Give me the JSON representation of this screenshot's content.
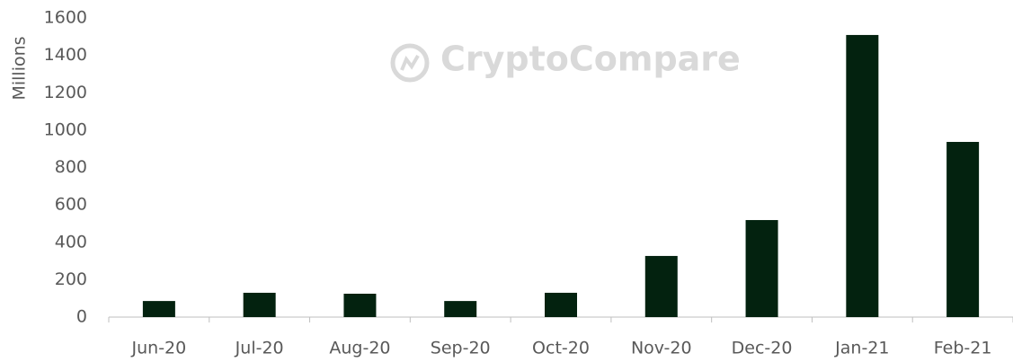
{
  "chart_data": {
    "type": "bar",
    "y_label": "Millions",
    "watermark": "CryptoCompare",
    "categories": [
      "Jun-20",
      "Jul-20",
      "Aug-20",
      "Sep-20",
      "Oct-20",
      "Nov-20",
      "Dec-20",
      "Jan-21",
      "Feb-21"
    ],
    "values": [
      86,
      130,
      125,
      86,
      130,
      327,
      519,
      1509,
      937
    ],
    "color": "#03220f",
    "ylim": [
      0,
      1600
    ],
    "yticks": [
      0,
      200,
      400,
      600,
      800,
      1000,
      1200,
      1400,
      1600
    ],
    "grid": false
  }
}
